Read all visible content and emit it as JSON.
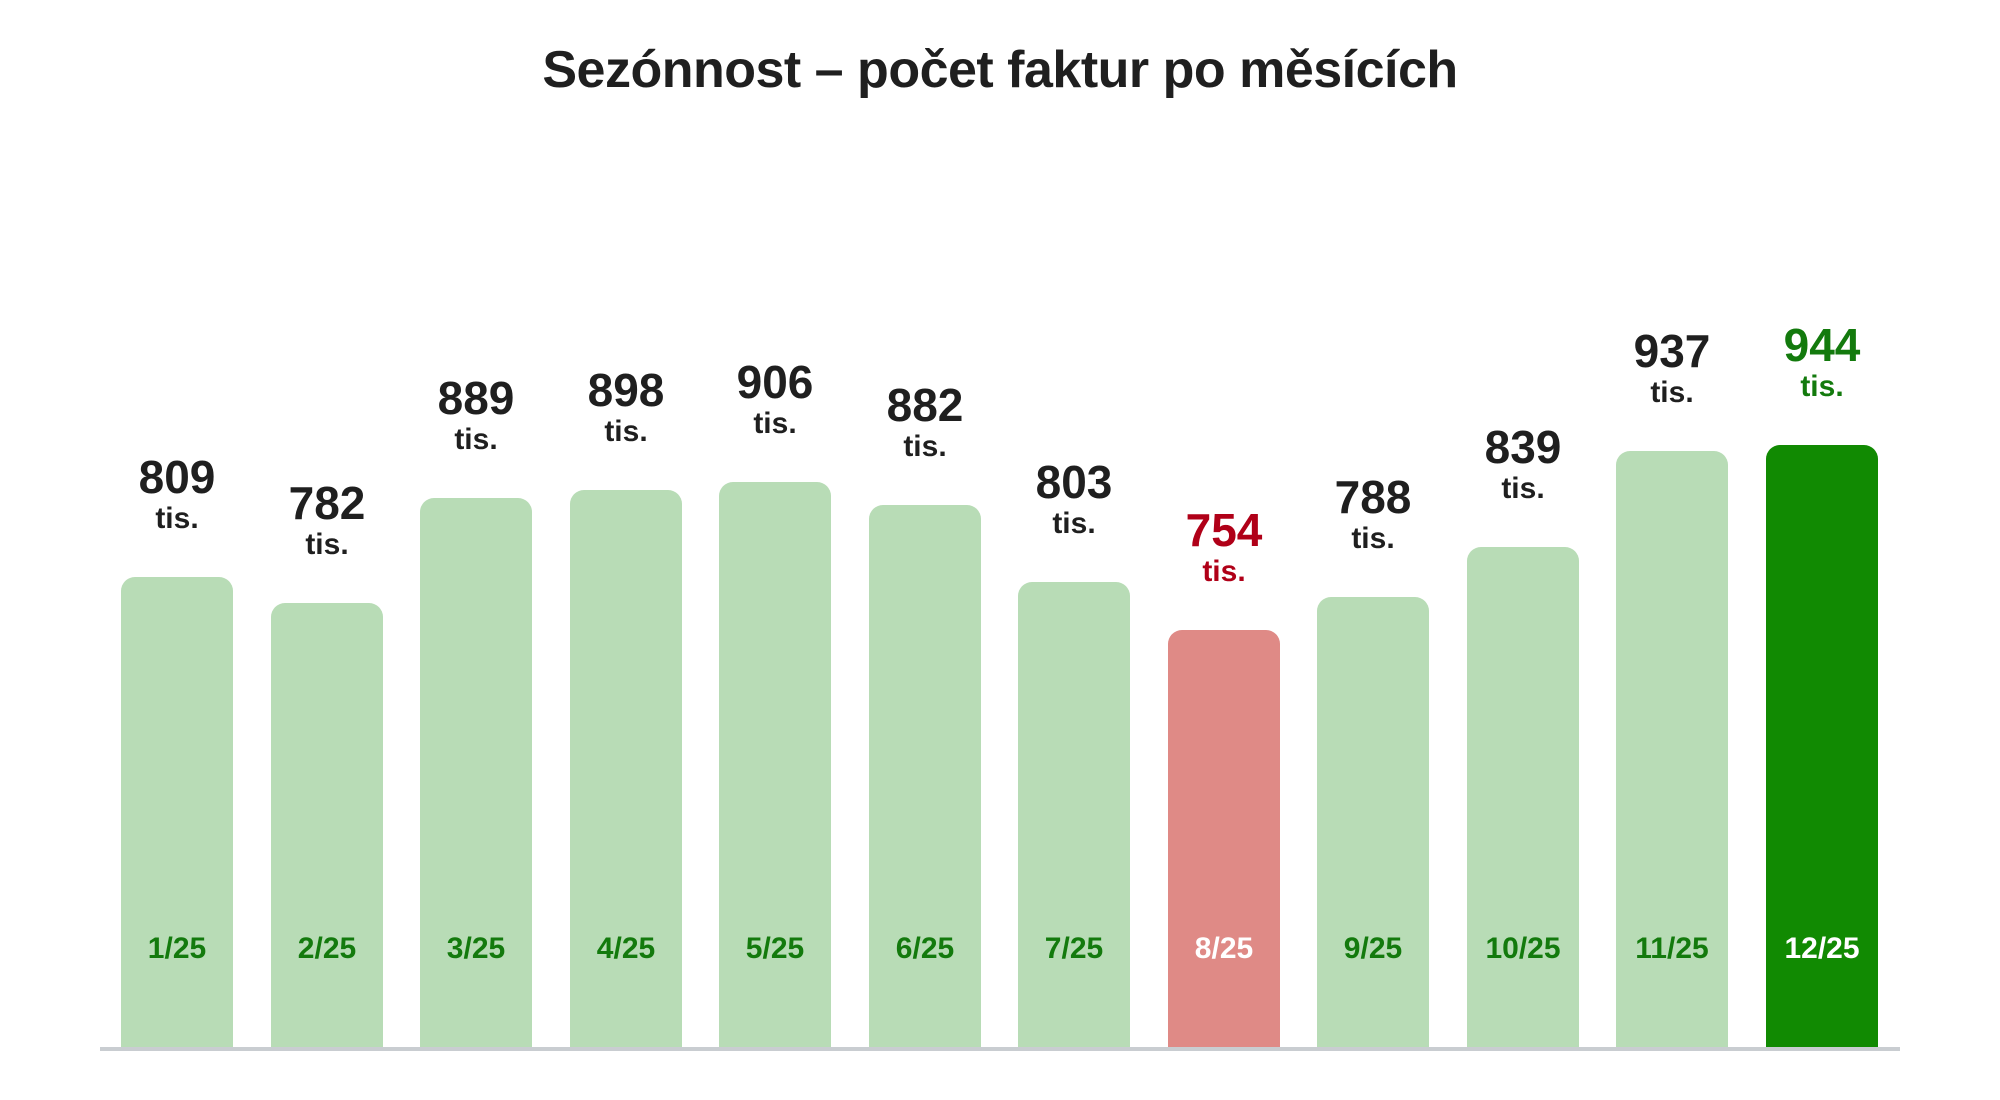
{
  "title": "Sezónnost – počet faktur po měsících",
  "colors": {
    "bar_default": "#b8dcb6",
    "bar_min": "#df8a86",
    "bar_max": "#118a02",
    "label_default": "#137a0d",
    "label_on_dark": "#ffffff",
    "value_default": "#1f1f1f",
    "value_min": "#b00018",
    "value_max": "#137a0d",
    "axis": "#c9cdd1"
  },
  "chart_data": {
    "type": "bar",
    "title": "Sezónnost – počet faktur po měsících",
    "xlabel": "",
    "ylabel": "",
    "unit": "tis.",
    "categories": [
      "1/25",
      "2/25",
      "3/25",
      "4/25",
      "5/25",
      "6/25",
      "7/25",
      "8/25",
      "9/25",
      "10/25",
      "11/25",
      "12/25"
    ],
    "values": [
      809,
      782,
      889,
      898,
      906,
      882,
      803,
      754,
      788,
      839,
      937,
      944
    ],
    "highlight": {
      "min_index": 7,
      "max_index": 11
    },
    "ylim": [
      328,
      1000
    ],
    "grid": false,
    "legend": null
  },
  "bars": [
    {
      "month": "1/25",
      "value": "809",
      "unit": "tis.",
      "state": "default"
    },
    {
      "month": "2/25",
      "value": "782",
      "unit": "tis.",
      "state": "default"
    },
    {
      "month": "3/25",
      "value": "889",
      "unit": "tis.",
      "state": "default"
    },
    {
      "month": "4/25",
      "value": "898",
      "unit": "tis.",
      "state": "default"
    },
    {
      "month": "5/25",
      "value": "906",
      "unit": "tis.",
      "state": "default"
    },
    {
      "month": "6/25",
      "value": "882",
      "unit": "tis.",
      "state": "default"
    },
    {
      "month": "7/25",
      "value": "803",
      "unit": "tis.",
      "state": "default"
    },
    {
      "month": "8/25",
      "value": "754",
      "unit": "tis.",
      "state": "min"
    },
    {
      "month": "9/25",
      "value": "788",
      "unit": "tis.",
      "state": "default"
    },
    {
      "month": "10/25",
      "value": "839",
      "unit": "tis.",
      "state": "default"
    },
    {
      "month": "11/25",
      "value": "937",
      "unit": "tis.",
      "state": "default"
    },
    {
      "month": "12/25",
      "value": "944",
      "unit": "tis.",
      "state": "max"
    }
  ]
}
